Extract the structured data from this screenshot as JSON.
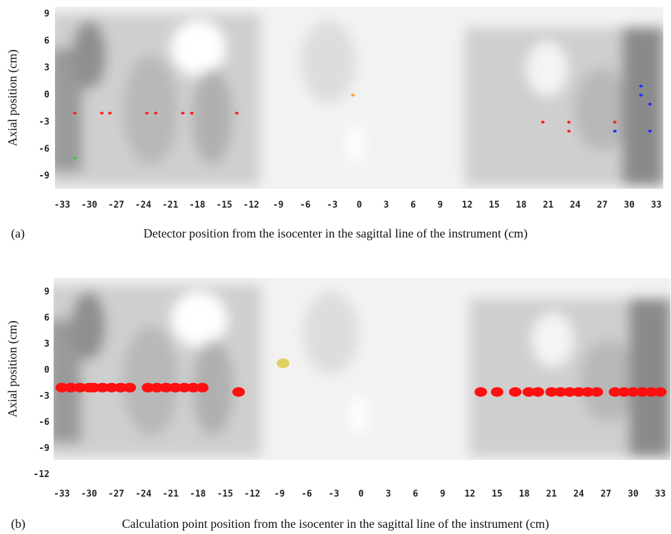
{
  "chart_data": [
    {
      "type": "scatter",
      "panel_label": "(a)",
      "xlabel": "Detector position from the isocenter in the sagittal line of the instrument (cm)",
      "ylabel": "Axial position (cm)",
      "xlim": [
        -33.8,
        33.8
      ],
      "ylim": [
        -10.4,
        9.8
      ],
      "xticks": [
        -33,
        -30,
        -27,
        -24,
        -21,
        -18,
        -15,
        -12,
        -9,
        -6,
        -3,
        0,
        3,
        6,
        9,
        12,
        15,
        18,
        21,
        24,
        27,
        30,
        33
      ],
      "yticks": [
        9,
        6,
        3,
        0,
        -3,
        -6,
        -9
      ],
      "marker_size": 2,
      "series": [
        {
          "color": "#ff2020",
          "x": [
            -31.6,
            -28.6,
            -27.7,
            -23.6,
            -22.6,
            -19.6,
            -18.6,
            -13.6,
            20.4,
            23.3,
            23.3,
            28.4
          ],
          "values": [
            -2,
            -2,
            -2,
            -2,
            -2,
            -2,
            -2,
            -2,
            -3,
            -3,
            -4,
            -3
          ]
        },
        {
          "color": "#2030ff",
          "x": [
            31.3,
            31.3,
            32.3,
            32.3,
            28.4
          ],
          "values": [
            1,
            0,
            -1,
            -4,
            -4
          ]
        },
        {
          "color": "#30d030",
          "x": [
            -31.6
          ],
          "values": [
            -7
          ]
        },
        {
          "color": "#ffa020",
          "x": [
            -0.7
          ],
          "values": [
            0
          ]
        }
      ]
    },
    {
      "type": "scatter",
      "panel_label": "(b)",
      "xlabel": "Calculation point position from the isocenter in the sagittal line of the instrument (cm)",
      "ylabel": "Axial position (cm)",
      "xlim": [
        -33.9,
        34.1
      ],
      "ylim": [
        -10.3,
        10.6
      ],
      "xticks": [
        -33,
        -30,
        -27,
        -24,
        -21,
        -18,
        -15,
        -12,
        -9,
        -6,
        -3,
        0,
        3,
        6,
        9,
        12,
        15,
        18,
        21,
        24,
        27,
        30,
        33
      ],
      "yticks": [
        9,
        6,
        3,
        0,
        -3,
        -6,
        -9,
        -12
      ],
      "marker_size": 7,
      "series": [
        {
          "color": "#ff1010",
          "x": [
            -33,
            -32,
            -31,
            -30,
            -29.5,
            -28.5,
            -27.5,
            -26.5,
            -25.5,
            -23.5,
            -22.5,
            -21.5,
            -20.5,
            -19.5,
            -18.5,
            -17.5,
            -13.5
          ],
          "values": [
            -2,
            -2,
            -2,
            -2,
            -2,
            -2,
            -2,
            -2,
            -2,
            -2,
            -2,
            -2,
            -2,
            -2,
            -2,
            -2,
            -2.5
          ]
        },
        {
          "color": "#ff1010",
          "x": [
            13.2,
            15,
            17,
            18.5,
            19.5,
            21,
            22,
            23,
            24,
            25,
            26,
            28,
            29,
            30,
            31,
            32,
            33
          ],
          "values": [
            -2.5,
            -2.5,
            -2.5,
            -2.5,
            -2.5,
            -2.5,
            -2.5,
            -2.5,
            -2.5,
            -2.5,
            -2.5,
            -2.5,
            -2.5,
            -2.5,
            -2.5,
            -2.5,
            -2.5
          ]
        },
        {
          "color": "#e0d060",
          "x": [
            -8.6
          ],
          "values": [
            0.8
          ]
        }
      ]
    }
  ]
}
